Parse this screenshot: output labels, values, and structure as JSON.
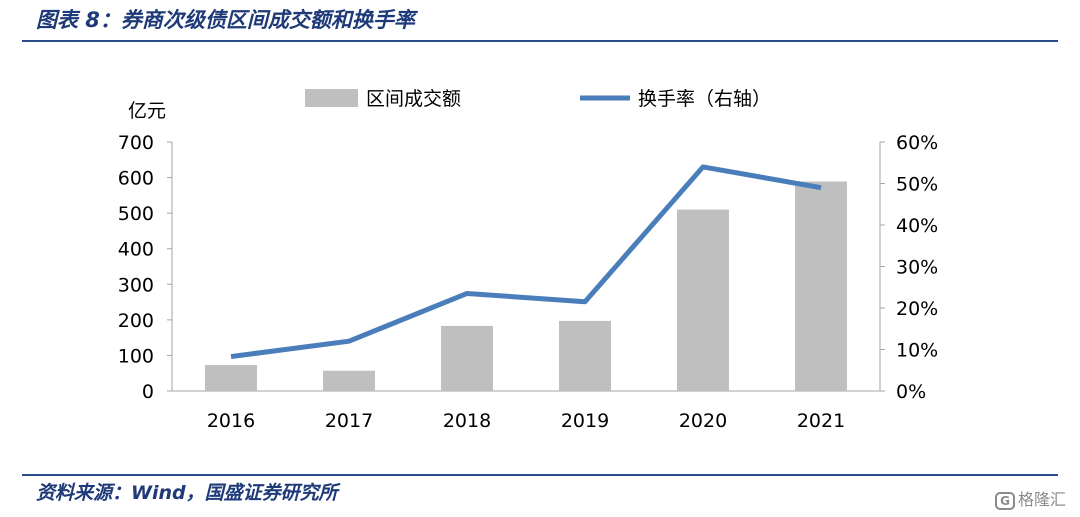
{
  "header": {
    "figure_title": "图表 8：券商次级债区间成交额和换手率"
  },
  "footer": {
    "source": "资料来源：Wind，国盛证券研究所",
    "watermark": "格隆汇",
    "watermark_mark": "G"
  },
  "chart_data": {
    "type": "bar",
    "categories": [
      "2016",
      "2017",
      "2018",
      "2019",
      "2020",
      "2021"
    ],
    "y_left_unit": "亿元",
    "ylim": [
      0,
      700
    ],
    "y_ticks": [
      "0",
      "100",
      "200",
      "300",
      "400",
      "500",
      "600",
      "700"
    ],
    "y2lim": [
      0,
      0.6
    ],
    "y2_ticks": [
      "0%",
      "10%",
      "20%",
      "30%",
      "40%",
      "50%",
      "60%"
    ],
    "legend_position": "top-center",
    "series": [
      {
        "name": "区间成交额",
        "type": "bar",
        "axis": "left",
        "color": "#bfbfbf",
        "values": [
          73,
          57,
          183,
          197,
          510,
          589
        ]
      },
      {
        "name": "换手率（右轴）",
        "type": "line",
        "axis": "right",
        "color": "#4a7ebb",
        "values": [
          0.083,
          0.12,
          0.235,
          0.215,
          0.54,
          0.49
        ]
      }
    ]
  }
}
